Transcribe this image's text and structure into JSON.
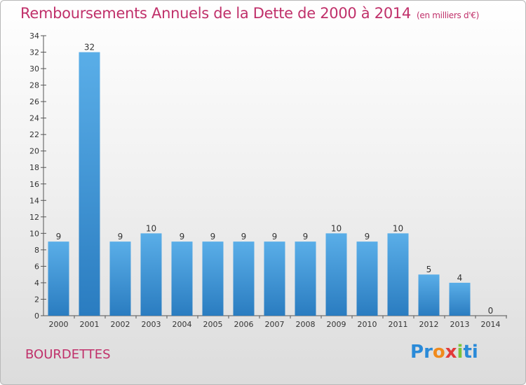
{
  "header": {
    "title": "Remboursements Annuels de la Dette de 2000 à 2014",
    "unit": "(en milliers d'€)"
  },
  "commune": "BOURDETTES",
  "logo": {
    "letters": [
      "P",
      "r",
      "o",
      "x",
      "i",
      "ti"
    ]
  },
  "colors": {
    "title": "#c0306a",
    "bar_light": "#5aaee8",
    "bar_dark": "#2a7cc0"
  },
  "chart_data": {
    "type": "bar",
    "categories": [
      "2000",
      "2001",
      "2002",
      "2003",
      "2004",
      "2005",
      "2006",
      "2007",
      "2008",
      "2009",
      "2010",
      "2011",
      "2012",
      "2013",
      "2014"
    ],
    "values": [
      9,
      32,
      9,
      10,
      9,
      9,
      9,
      9,
      9,
      10,
      9,
      10,
      5,
      4,
      0
    ],
    "title": "Remboursements Annuels de la Dette de 2000 à 2014",
    "ylim": [
      0,
      34
    ],
    "yticks": [
      "0",
      "2",
      "4",
      "6",
      "8",
      "10",
      "12",
      "14",
      "16",
      "18",
      "20",
      "22",
      "24",
      "26",
      "28",
      "30",
      "32",
      "34"
    ],
    "grid": false,
    "data_labels": true
  }
}
